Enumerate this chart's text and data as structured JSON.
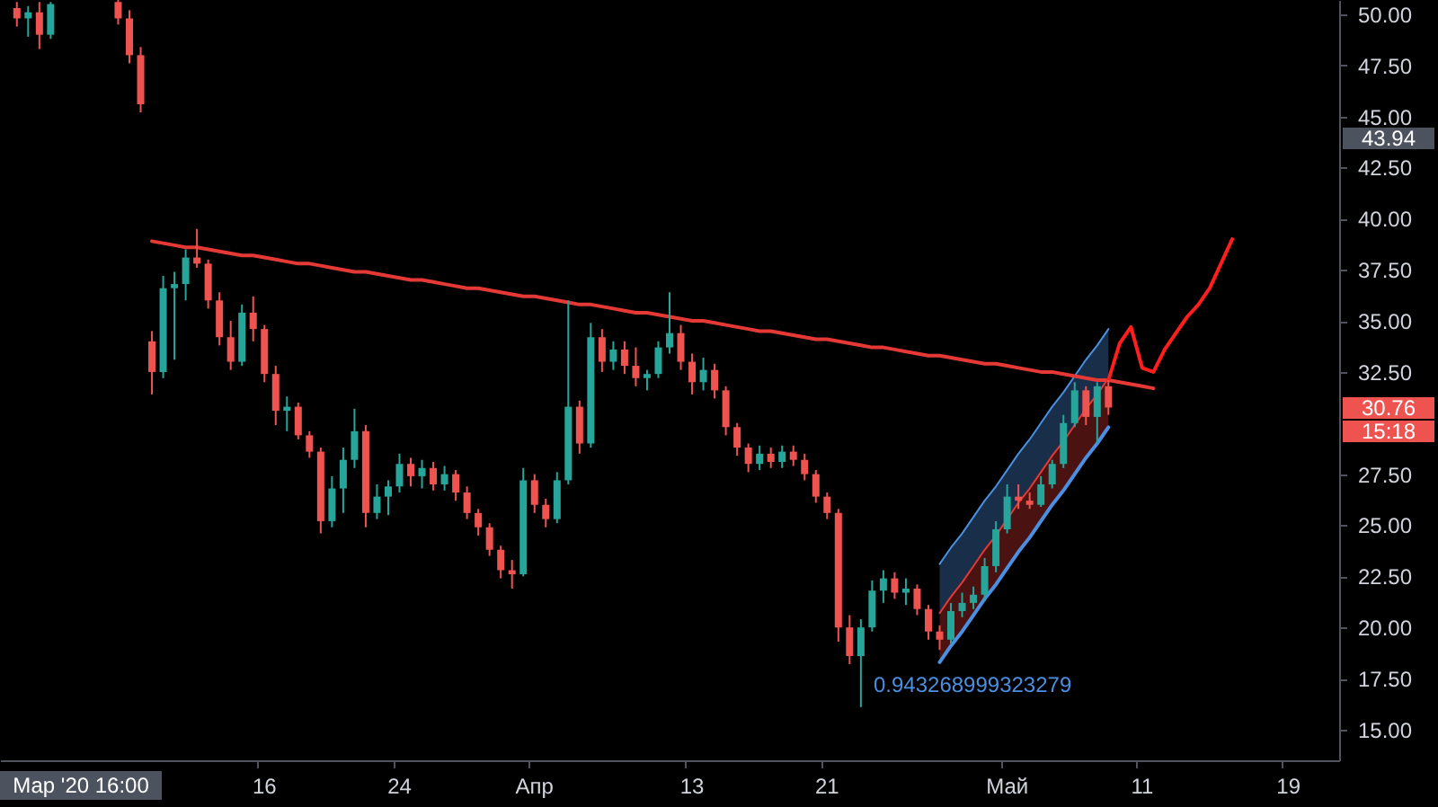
{
  "chart_data": {
    "type": "candlestick",
    "categories": [
      null,
      null,
      null,
      null,
      null,
      null,
      null,
      null,
      null,
      null,
      null,
      null,
      null,
      null,
      null,
      null,
      null,
      null,
      null,
      null,
      null,
      null,
      null,
      "16",
      null,
      null,
      null,
      null,
      null,
      null,
      null,
      null,
      null,
      null,
      null,
      "24",
      null,
      null,
      null,
      null,
      null,
      null,
      null,
      null,
      null,
      null,
      null,
      "Апр",
      null,
      null,
      null,
      null,
      null,
      null,
      null,
      null,
      null,
      null,
      null,
      null,
      null,
      "13",
      null,
      null,
      null,
      null,
      null,
      null,
      null,
      null,
      null,
      null,
      null,
      "21",
      null,
      null,
      null,
      null,
      null,
      null,
      null,
      null,
      null,
      null,
      null,
      null,
      null,
      null,
      null,
      "Май",
      null,
      null,
      null,
      null,
      null,
      null,
      null,
      null,
      null,
      null,
      null,
      "11",
      null,
      null,
      null,
      null,
      null,
      null,
      null,
      null,
      null,
      null,
      null,
      null,
      "19",
      null,
      null,
      null,
      null
    ],
    "ohlc": [
      null,
      [
        50.3,
        50.6,
        49.4,
        49.8
      ],
      [
        49.8,
        50.4,
        48.9,
        50.1
      ],
      [
        50.1,
        50.6,
        48.3,
        49.0
      ],
      [
        49.0,
        50.6,
        48.8,
        50.5
      ],
      null,
      null,
      null,
      null,
      null,
      [
        50.6,
        50.7,
        49.5,
        49.8
      ],
      [
        49.8,
        50.2,
        47.6,
        48.0
      ],
      [
        48.0,
        48.4,
        45.2,
        45.6
      ],
      [
        34.0,
        34.5,
        31.4,
        32.5
      ],
      [
        32.5,
        37.2,
        32.2,
        36.6
      ],
      [
        36.6,
        37.4,
        33.1,
        36.8
      ],
      [
        36.8,
        38.5,
        36.0,
        38.1
      ],
      [
        38.1,
        39.5,
        37.6,
        37.8
      ],
      [
        37.8,
        38.0,
        35.6,
        36.0
      ],
      [
        36.0,
        36.4,
        33.8,
        34.2
      ],
      [
        34.2,
        35.0,
        32.6,
        33.0
      ],
      [
        33.0,
        35.8,
        32.8,
        35.4
      ],
      [
        35.4,
        36.2,
        34.0,
        34.6
      ],
      [
        34.6,
        34.8,
        32.0,
        32.4
      ],
      [
        32.4,
        32.8,
        29.9,
        30.6
      ],
      [
        30.6,
        31.3,
        29.6,
        30.8
      ],
      [
        30.8,
        31.0,
        29.2,
        29.4
      ],
      [
        29.4,
        29.6,
        28.3,
        28.6
      ],
      [
        28.6,
        28.8,
        24.6,
        25.2
      ],
      [
        25.2,
        27.4,
        24.9,
        26.8
      ],
      [
        26.8,
        28.8,
        25.6,
        28.2
      ],
      [
        28.2,
        30.7,
        27.8,
        29.6
      ],
      [
        29.6,
        29.9,
        24.9,
        25.6
      ],
      [
        25.6,
        27.0,
        25.3,
        26.4
      ],
      [
        26.4,
        27.2,
        25.5,
        26.9
      ],
      [
        26.9,
        28.5,
        26.6,
        28.0
      ],
      [
        28.0,
        28.3,
        26.9,
        27.4
      ],
      [
        27.4,
        28.2,
        26.8,
        27.8
      ],
      [
        27.8,
        28.1,
        26.7,
        27.0
      ],
      [
        27.0,
        27.9,
        26.7,
        27.5
      ],
      [
        27.5,
        27.7,
        26.2,
        26.6
      ],
      [
        26.6,
        26.9,
        25.3,
        25.6
      ],
      [
        25.6,
        25.8,
        24.5,
        24.9
      ],
      [
        24.9,
        25.1,
        23.5,
        23.8
      ],
      [
        23.8,
        24.0,
        22.4,
        22.8
      ],
      [
        22.8,
        23.3,
        21.9,
        22.6
      ],
      [
        22.6,
        27.8,
        22.5,
        27.2
      ],
      [
        27.2,
        27.5,
        25.6,
        26.0
      ],
      [
        26.0,
        26.3,
        24.9,
        25.3
      ],
      [
        25.3,
        27.6,
        25.1,
        27.2
      ],
      [
        27.2,
        36.0,
        27.0,
        30.8
      ],
      [
        30.8,
        31.1,
        28.5,
        29.0
      ],
      [
        29.0,
        34.9,
        28.8,
        34.2
      ],
      [
        34.2,
        34.6,
        32.5,
        33.0
      ],
      [
        33.0,
        34.0,
        32.6,
        33.6
      ],
      [
        33.6,
        34.0,
        32.4,
        32.8
      ],
      [
        32.8,
        33.7,
        31.8,
        32.2
      ],
      [
        32.2,
        32.6,
        31.6,
        32.4
      ],
      [
        32.4,
        34.0,
        32.2,
        33.7
      ],
      [
        33.7,
        36.4,
        33.4,
        34.4
      ],
      [
        34.4,
        34.8,
        32.6,
        33.0
      ],
      [
        33.0,
        33.4,
        31.4,
        32.0
      ],
      [
        32.0,
        33.2,
        31.6,
        32.6
      ],
      [
        32.6,
        32.9,
        31.2,
        31.6
      ],
      [
        31.6,
        31.8,
        29.4,
        29.8
      ],
      [
        29.8,
        30.0,
        28.4,
        28.8
      ],
      [
        28.8,
        29.0,
        27.6,
        28.0
      ],
      [
        28.0,
        28.9,
        27.7,
        28.5
      ],
      [
        28.5,
        28.8,
        27.8,
        28.1
      ],
      [
        28.1,
        28.9,
        27.8,
        28.6
      ],
      [
        28.6,
        28.9,
        27.9,
        28.2
      ],
      [
        28.2,
        28.5,
        27.2,
        27.5
      ],
      [
        27.5,
        27.7,
        26.1,
        26.4
      ],
      [
        26.4,
        26.6,
        25.3,
        25.6
      ],
      [
        25.6,
        25.8,
        19.3,
        20.0
      ],
      [
        20.0,
        20.6,
        18.2,
        18.6
      ],
      [
        18.6,
        20.4,
        16.1,
        20.0
      ],
      [
        20.0,
        22.3,
        19.8,
        21.8
      ],
      [
        21.8,
        22.8,
        21.2,
        22.4
      ],
      [
        22.4,
        22.7,
        21.4,
        21.7
      ],
      [
        21.7,
        22.4,
        21.1,
        21.9
      ],
      [
        21.9,
        22.1,
        20.6,
        20.9
      ],
      [
        20.9,
        21.1,
        19.4,
        19.8
      ],
      [
        19.8,
        20.1,
        18.9,
        19.4
      ],
      [
        19.4,
        21.2,
        19.2,
        20.8
      ],
      [
        20.8,
        21.7,
        20.5,
        21.2
      ],
      [
        21.2,
        22.0,
        20.9,
        21.6
      ],
      [
        21.6,
        23.4,
        21.3,
        23.0
      ],
      [
        23.0,
        25.2,
        22.7,
        24.8
      ],
      [
        24.8,
        27.0,
        24.6,
        26.4
      ],
      [
        26.4,
        27.0,
        25.8,
        26.2
      ],
      [
        26.2,
        26.6,
        25.8,
        26.0
      ],
      [
        26.0,
        27.4,
        25.9,
        27.0
      ],
      [
        27.0,
        28.2,
        26.8,
        28.0
      ],
      [
        28.0,
        30.4,
        27.8,
        30.0
      ],
      [
        30.0,
        32.0,
        29.8,
        31.6
      ],
      [
        31.6,
        31.8,
        29.9,
        30.3
      ],
      [
        30.3,
        32.0,
        29.0,
        31.8
      ],
      [
        31.8,
        32.1,
        30.4,
        30.76
      ],
      null,
      null,
      null,
      null,
      null,
      null,
      null,
      null,
      null,
      null,
      null,
      null,
      null,
      null,
      null,
      null,
      null,
      null,
      null,
      null
    ],
    "colors": [
      null,
      "#ef5350",
      "#26a69a",
      "#ef5350",
      "#26a69a",
      null,
      null,
      null,
      null,
      null,
      "#ef5350",
      "#ef5350",
      "#ef5350",
      "#ef5350",
      "#26a69a",
      "#26a69a",
      "#26a69a",
      "#ef5350",
      "#ef5350",
      "#ef5350",
      "#ef5350",
      "#26a69a",
      "#ef5350",
      "#ef5350",
      "#ef5350",
      "#26a69a",
      "#ef5350",
      "#ef5350",
      "#ef5350",
      "#26a69a",
      "#26a69a",
      "#26a69a",
      "#ef5350",
      "#26a69a",
      "#26a69a",
      "#26a69a",
      "#ef5350",
      "#26a69a",
      "#ef5350",
      "#26a69a",
      "#ef5350",
      "#ef5350",
      "#ef5350",
      "#ef5350",
      "#ef5350",
      "#ef5350",
      "#26a69a",
      "#ef5350",
      "#ef5350",
      "#26a69a",
      "#26a69a",
      "#ef5350",
      "#26a69a",
      "#ef5350",
      "#26a69a",
      "#ef5350",
      "#ef5350",
      "#26a69a",
      "#26a69a",
      "#26a69a",
      "#ef5350",
      "#ef5350",
      "#26a69a",
      "#ef5350",
      "#ef5350",
      "#ef5350",
      "#ef5350",
      "#26a69a",
      "#ef5350",
      "#26a69a",
      "#ef5350",
      "#ef5350",
      "#ef5350",
      "#ef5350",
      "#ef5350",
      "#ef5350",
      "#26a69a",
      "#26a69a",
      "#26a69a",
      "#ef5350",
      "#26a69a",
      "#ef5350",
      "#ef5350",
      "#ef5350",
      "#26a69a",
      "#26a69a",
      "#26a69a",
      "#26a69a",
      "#26a69a",
      "#26a69a",
      "#ef5350",
      "#ef5350",
      "#26a69a",
      "#26a69a",
      "#26a69a",
      "#26a69a",
      "#ef5350",
      "#26a69a",
      "#ef5350",
      null,
      null,
      null,
      null,
      null,
      null,
      null,
      null,
      null,
      null,
      null,
      null,
      null,
      null,
      null,
      null,
      null,
      null,
      null,
      null
    ],
    "series": [
      {
        "type": "line",
        "color": "#4a90e2",
        "values": [
          null,
          null,
          null,
          null,
          null,
          null,
          null,
          null,
          null,
          null,
          null,
          null,
          null,
          null,
          null,
          null,
          null,
          null,
          null,
          null,
          null,
          null,
          null,
          null,
          null,
          null,
          null,
          null,
          null,
          null,
          null,
          null,
          null,
          null,
          null,
          null,
          null,
          null,
          null,
          null,
          null,
          null,
          null,
          null,
          null,
          null,
          null,
          null,
          null,
          null,
          null,
          null,
          null,
          null,
          null,
          null,
          null,
          null,
          null,
          null,
          null,
          null,
          null,
          null,
          null,
          null,
          null,
          null,
          null,
          null,
          null,
          null,
          null,
          null,
          null,
          null,
          null,
          null,
          null,
          null,
          null,
          null,
          null,
          23.1,
          23.9,
          24.6,
          25.4,
          26.2,
          26.9,
          27.7,
          28.5,
          29.2,
          30.0,
          30.8,
          31.5,
          32.3,
          33.1,
          33.8,
          34.6,
          null,
          null,
          null,
          null,
          null,
          null,
          null,
          null,
          null,
          null,
          null,
          null,
          null,
          null,
          null,
          null,
          null,
          null,
          null,
          null
        ],
        "lower": [
          null,
          null,
          null,
          null,
          null,
          null,
          null,
          null,
          null,
          null,
          null,
          null,
          null,
          null,
          null,
          null,
          null,
          null,
          null,
          null,
          null,
          null,
          null,
          null,
          null,
          null,
          null,
          null,
          null,
          null,
          null,
          null,
          null,
          null,
          null,
          null,
          null,
          null,
          null,
          null,
          null,
          null,
          null,
          null,
          null,
          null,
          null,
          null,
          null,
          null,
          null,
          null,
          null,
          null,
          null,
          null,
          null,
          null,
          null,
          null,
          null,
          null,
          null,
          null,
          null,
          null,
          null,
          null,
          null,
          null,
          null,
          null,
          null,
          null,
          null,
          null,
          null,
          null,
          null,
          null,
          null,
          null,
          null,
          20.7,
          21.5,
          22.2,
          23.0,
          23.8,
          24.5,
          25.3,
          26.1,
          26.8,
          27.6,
          28.4,
          29.1,
          29.9,
          30.7,
          31.4,
          32.2,
          null,
          null,
          null,
          null,
          null,
          null,
          null,
          null,
          null,
          null,
          null,
          null,
          null,
          null,
          null,
          null,
          null,
          null,
          null,
          null
        ],
        "upper": [
          null,
          null,
          null,
          null,
          null,
          null,
          null,
          null,
          null,
          null,
          null,
          null,
          null,
          null,
          null,
          null,
          null,
          null,
          null,
          null,
          null,
          null,
          null,
          null,
          null,
          null,
          null,
          null,
          null,
          null,
          null,
          null,
          null,
          null,
          null,
          null,
          null,
          null,
          null,
          null,
          null,
          null,
          null,
          null,
          null,
          null,
          null,
          null,
          null,
          null,
          null,
          null,
          null,
          null,
          null,
          null,
          null,
          null,
          null,
          null,
          null,
          null,
          null,
          null,
          null,
          null,
          null,
          null,
          null,
          null,
          null,
          null,
          null,
          null,
          null,
          null,
          null,
          null,
          null,
          null,
          null,
          null,
          null,
          23.1,
          23.9,
          24.6,
          25.4,
          26.2,
          26.9,
          27.7,
          28.5,
          29.2,
          30.0,
          30.8,
          31.5,
          32.3,
          33.1,
          33.8,
          34.6,
          null,
          null,
          null,
          null,
          null,
          null,
          null,
          null,
          null,
          null,
          null,
          null,
          null,
          null,
          null,
          null,
          null,
          null,
          null,
          null
        ]
      },
      {
        "type": "line",
        "color": "#e53935",
        "values": [
          null,
          null,
          null,
          null,
          null,
          null,
          null,
          null,
          null,
          null,
          null,
          null,
          null,
          null,
          null,
          null,
          null,
          null,
          null,
          null,
          null,
          null,
          null,
          null,
          null,
          null,
          null,
          null,
          null,
          null,
          null,
          null,
          null,
          null,
          null,
          null,
          null,
          null,
          null,
          null,
          null,
          null,
          null,
          null,
          null,
          null,
          null,
          null,
          null,
          null,
          null,
          null,
          null,
          null,
          null,
          null,
          null,
          null,
          null,
          null,
          null,
          null,
          null,
          null,
          null,
          null,
          null,
          null,
          null,
          null,
          null,
          null,
          null,
          null,
          null,
          null,
          null,
          null,
          null,
          null,
          null,
          null,
          null,
          20.7,
          21.5,
          22.2,
          23.0,
          23.8,
          24.5,
          25.3,
          26.1,
          26.8,
          27.6,
          28.4,
          29.1,
          29.9,
          30.7,
          31.4,
          32.2,
          null,
          null,
          null,
          null,
          null,
          null,
          null,
          null,
          null,
          null,
          null,
          null,
          null,
          null,
          null,
          null,
          null,
          null,
          null,
          null
        ],
        "lower": [
          null,
          null,
          null,
          null,
          null,
          null,
          null,
          null,
          null,
          null,
          null,
          null,
          null,
          null,
          null,
          null,
          null,
          null,
          null,
          null,
          null,
          null,
          null,
          null,
          null,
          null,
          null,
          null,
          null,
          null,
          null,
          null,
          null,
          null,
          null,
          null,
          null,
          null,
          null,
          null,
          null,
          null,
          null,
          null,
          null,
          null,
          null,
          null,
          null,
          null,
          null,
          null,
          null,
          null,
          null,
          null,
          null,
          null,
          null,
          null,
          null,
          null,
          null,
          null,
          null,
          null,
          null,
          null,
          null,
          null,
          null,
          null,
          null,
          null,
          null,
          null,
          null,
          null,
          null,
          null,
          null,
          null,
          null,
          18.3,
          19.1,
          19.8,
          20.6,
          21.4,
          22.1,
          22.9,
          23.7,
          24.4,
          25.2,
          26.0,
          26.7,
          27.5,
          28.3,
          29.0,
          29.8,
          null,
          null,
          null,
          null,
          null,
          null,
          null,
          null,
          null,
          null,
          null,
          null,
          null,
          null,
          null,
          null,
          null,
          null,
          null,
          null
        ],
        "upper": [
          null,
          null,
          null,
          null,
          null,
          null,
          null,
          null,
          null,
          null,
          null,
          null,
          null,
          null,
          null,
          null,
          null,
          null,
          null,
          null,
          null,
          null,
          null,
          null,
          null,
          null,
          null,
          null,
          null,
          null,
          null,
          null,
          null,
          null,
          null,
          null,
          null,
          null,
          null,
          null,
          null,
          null,
          null,
          null,
          null,
          null,
          null,
          null,
          null,
          null,
          null,
          null,
          null,
          null,
          null,
          null,
          null,
          null,
          null,
          null,
          null,
          null,
          null,
          null,
          null,
          null,
          null,
          null,
          null,
          null,
          null,
          null,
          null,
          null,
          null,
          null,
          null,
          null,
          null,
          null,
          null,
          null,
          null,
          20.7,
          21.5,
          22.2,
          23.0,
          23.8,
          24.5,
          25.3,
          26.1,
          26.8,
          27.6,
          28.4,
          29.1,
          29.9,
          30.7,
          31.4,
          32.2,
          null,
          null,
          null,
          null,
          null,
          null,
          null,
          null,
          null,
          null,
          null,
          null,
          null,
          null,
          null,
          null,
          null,
          null,
          null,
          null
        ]
      },
      {
        "type": "line",
        "color": "#4a90e2",
        "values": [
          null,
          null,
          null,
          null,
          null,
          null,
          null,
          null,
          null,
          null,
          null,
          null,
          null,
          null,
          null,
          null,
          null,
          null,
          null,
          null,
          null,
          null,
          null,
          null,
          null,
          null,
          null,
          null,
          null,
          null,
          null,
          null,
          null,
          null,
          null,
          null,
          null,
          null,
          null,
          null,
          null,
          null,
          null,
          null,
          null,
          null,
          null,
          null,
          null,
          null,
          null,
          null,
          null,
          null,
          null,
          null,
          null,
          null,
          null,
          null,
          null,
          null,
          null,
          null,
          null,
          null,
          null,
          null,
          null,
          null,
          null,
          null,
          null,
          null,
          null,
          null,
          null,
          null,
          null,
          null,
          null,
          null,
          null,
          18.3,
          19.1,
          19.8,
          20.6,
          21.4,
          22.1,
          22.9,
          23.7,
          24.4,
          25.2,
          26.0,
          26.7,
          27.5,
          28.3,
          29.0,
          29.8,
          null,
          null,
          null,
          null,
          null,
          null,
          null,
          null,
          null,
          null,
          null,
          null,
          null,
          null,
          null,
          null,
          null,
          null,
          null,
          null
        ]
      },
      {
        "type": "line",
        "color": "#e53935",
        "values": [
          null,
          null,
          null,
          null,
          null,
          null,
          null,
          null,
          null,
          null,
          null,
          null,
          null,
          38.9,
          38.8,
          38.7,
          38.6,
          38.6,
          38.5,
          38.4,
          38.3,
          38.2,
          38.2,
          38.1,
          38.0,
          37.9,
          37.8,
          37.8,
          37.7,
          37.6,
          37.5,
          37.4,
          37.4,
          37.3,
          37.2,
          37.1,
          37.0,
          37.0,
          36.9,
          36.8,
          36.7,
          36.6,
          36.6,
          36.5,
          36.4,
          36.3,
          36.2,
          36.2,
          36.1,
          36.0,
          35.9,
          35.8,
          35.8,
          35.7,
          35.6,
          35.5,
          35.4,
          35.4,
          35.3,
          35.2,
          35.1,
          35.0,
          35.0,
          34.9,
          34.8,
          34.7,
          34.6,
          34.5,
          34.5,
          34.4,
          34.3,
          34.2,
          34.1,
          34.1,
          34.0,
          33.9,
          33.8,
          33.7,
          33.7,
          33.6,
          33.5,
          33.4,
          33.3,
          33.3,
          33.2,
          33.1,
          33.0,
          32.9,
          32.9,
          32.8,
          32.7,
          32.6,
          32.5,
          32.5,
          32.4,
          32.3,
          32.2,
          32.1,
          32.1,
          32.0,
          31.9,
          31.8,
          31.7,
          null,
          null,
          null,
          null,
          null,
          null,
          null,
          null,
          null,
          null,
          null,
          null,
          null,
          null,
          null,
          null
        ]
      },
      {
        "type": "line",
        "color": "#ff1e1e",
        "values": [
          null,
          null,
          null,
          null,
          null,
          null,
          null,
          null,
          null,
          null,
          null,
          null,
          null,
          null,
          null,
          null,
          null,
          null,
          null,
          null,
          null,
          null,
          null,
          null,
          null,
          null,
          null,
          null,
          null,
          null,
          null,
          null,
          null,
          null,
          null,
          null,
          null,
          null,
          null,
          null,
          null,
          null,
          null,
          null,
          null,
          null,
          null,
          null,
          null,
          null,
          null,
          null,
          null,
          null,
          null,
          null,
          null,
          null,
          null,
          null,
          null,
          null,
          null,
          null,
          null,
          null,
          null,
          null,
          null,
          null,
          null,
          null,
          null,
          null,
          null,
          null,
          null,
          null,
          null,
          null,
          null,
          null,
          null,
          null,
          null,
          null,
          null,
          null,
          null,
          null,
          null,
          null,
          null,
          null,
          null,
          null,
          null,
          null,
          32.1,
          33.9,
          34.7,
          32.7,
          32.5,
          33.6,
          34.4,
          35.2,
          35.8,
          36.6,
          37.8,
          39.0,
          null,
          null,
          null,
          null,
          null,
          null,
          null,
          null,
          null
        ]
      }
    ],
    "ylim": [
      13.5,
      50.7
    ],
    "yticks": [
      {
        "value": 15,
        "label": "15.00"
      },
      {
        "value": 17.5,
        "label": "17.50"
      },
      {
        "value": 20,
        "label": "20.00"
      },
      {
        "value": 22.5,
        "label": "22.50"
      },
      {
        "value": 25,
        "label": "25.00"
      },
      {
        "value": 27.5,
        "label": "27.50"
      },
      {
        "value": 32.5,
        "label": "32.50"
      },
      {
        "value": 35,
        "label": "35.00"
      },
      {
        "value": 37.5,
        "label": "37.50"
      },
      {
        "value": 40,
        "label": "40.00"
      },
      {
        "value": 42.5,
        "label": "42.50"
      },
      {
        "value": 45,
        "label": "45.00"
      },
      {
        "value": 47.5,
        "label": "47.50"
      },
      {
        "value": 50,
        "label": "50.00"
      }
    ],
    "annotations": [
      "Мар '20 16:00",
      "43.94",
      "30.76",
      "15:18",
      "0.943268999323279"
    ],
    "grid": false
  }
}
